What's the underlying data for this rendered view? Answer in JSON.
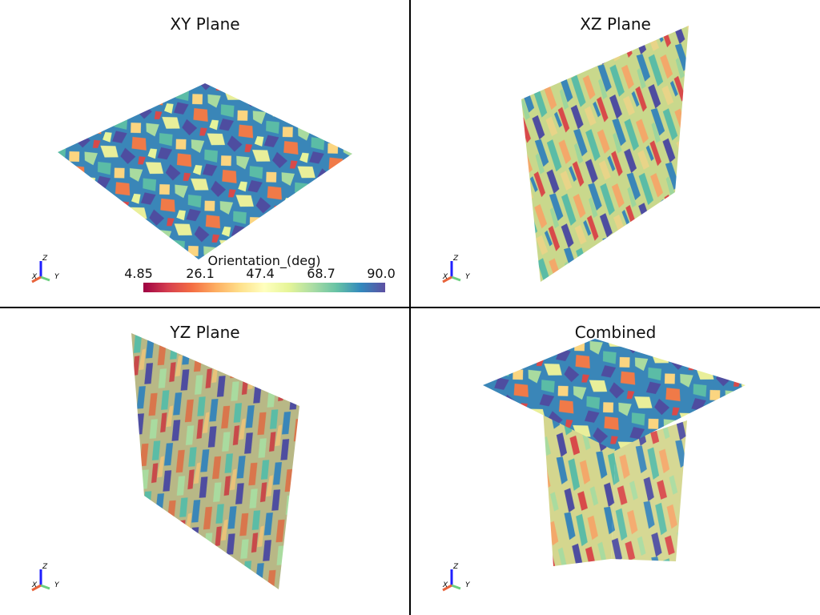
{
  "viewports": [
    {
      "id": "xy",
      "title": "XY Plane"
    },
    {
      "id": "xz",
      "title": "XZ Plane"
    },
    {
      "id": "yz",
      "title": "YZ Plane"
    },
    {
      "id": "combined",
      "title": "Combined"
    }
  ],
  "axes_labels": {
    "x": "X",
    "y": "Y",
    "z": "Z"
  },
  "axes_colors": {
    "x": "#e8643c",
    "y": "#6ccf7f",
    "z": "#1f1fff"
  },
  "colorbar": {
    "title": "Orientation_(deg)",
    "min": 4.85,
    "max": 90.0,
    "ticks": [
      "4.85",
      "26.1",
      "47.4",
      "68.7",
      "90.0"
    ],
    "colormap": "Spectral",
    "colors": [
      "#9e0142",
      "#d53e4f",
      "#f46d43",
      "#fdae61",
      "#fee08b",
      "#ffffbf",
      "#e6f598",
      "#abdda4",
      "#66c2a5",
      "#3288bd",
      "#5e4fa2"
    ]
  }
}
